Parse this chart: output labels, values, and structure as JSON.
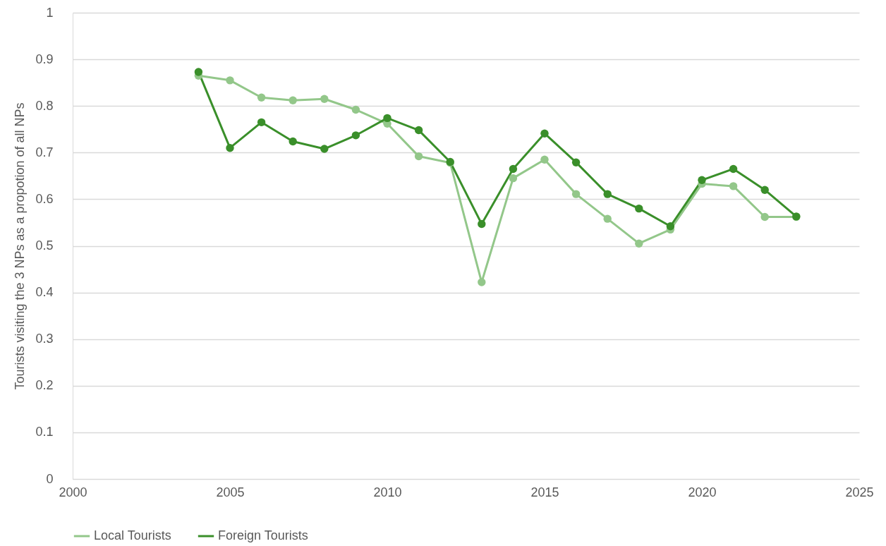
{
  "chart_data": {
    "type": "line",
    "ylabel": "Tourists visiting the 3 NPs as a propotion of all NPs",
    "x": [
      2004,
      2005,
      2006,
      2007,
      2008,
      2009,
      2010,
      2011,
      2012,
      2013,
      2014,
      2015,
      2016,
      2017,
      2018,
      2019,
      2020,
      2021,
      2022,
      2023
    ],
    "series": [
      {
        "name": "Local Tourists",
        "color": "#93c78a",
        "values": [
          0.865,
          0.855,
          0.818,
          0.812,
          0.815,
          0.792,
          0.762,
          0.692,
          0.678,
          0.422,
          0.645,
          0.685,
          0.611,
          0.558,
          0.505,
          0.535,
          0.633,
          0.628,
          0.562,
          0.562
        ]
      },
      {
        "name": "Foreign Tourists",
        "color": "#3a8f2a",
        "values": [
          0.873,
          0.71,
          0.765,
          0.724,
          0.708,
          0.737,
          0.774,
          0.748,
          0.68,
          0.547,
          0.665,
          0.741,
          0.679,
          0.611,
          0.58,
          0.542,
          0.641,
          0.665,
          0.62,
          0.563
        ]
      }
    ],
    "xlim": [
      2000,
      2025
    ],
    "xticks": [
      2000,
      2005,
      2010,
      2015,
      2020,
      2025
    ],
    "ylim": [
      0,
      1
    ],
    "yticks": [
      0,
      0.1,
      0.2,
      0.3,
      0.4,
      0.5,
      0.6,
      0.7,
      0.8,
      0.9,
      1
    ],
    "grid": "y",
    "legend": "bottom",
    "marker": "circle",
    "line_style": "solid"
  }
}
